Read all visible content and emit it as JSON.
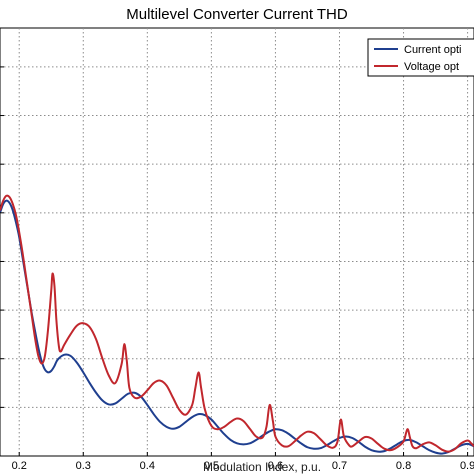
{
  "chart_data": {
    "type": "line",
    "title": "Multilevel Converter Current THD",
    "xlabel": "Modulation Index, p.u.",
    "ylabel": "",
    "xlim": [
      0.17,
      0.91
    ],
    "ylim": [
      0,
      8.8
    ],
    "x_ticks": [
      0.2,
      0.3,
      0.4,
      0.5,
      0.6,
      0.7,
      0.8,
      0.9
    ],
    "x_tick_labels": [
      "0.2",
      "0.3",
      "0.4",
      "0.5",
      "0.6",
      "0.7",
      "0.8",
      "0.9"
    ],
    "grid": true,
    "legend_position": "top-right",
    "series": [
      {
        "name": "Current opti",
        "color": "#1f3f8f",
        "x": [
          0.17,
          0.175,
          0.18,
          0.185,
          0.19,
          0.195,
          0.2,
          0.205,
          0.21,
          0.215,
          0.22,
          0.225,
          0.23,
          0.235,
          0.24,
          0.245,
          0.25,
          0.255,
          0.26,
          0.27,
          0.28,
          0.29,
          0.3,
          0.31,
          0.32,
          0.33,
          0.34,
          0.35,
          0.36,
          0.37,
          0.38,
          0.39,
          0.4,
          0.41,
          0.42,
          0.43,
          0.44,
          0.45,
          0.46,
          0.47,
          0.48,
          0.49,
          0.5,
          0.51,
          0.52,
          0.53,
          0.54,
          0.55,
          0.56,
          0.57,
          0.58,
          0.59,
          0.6,
          0.61,
          0.62,
          0.63,
          0.64,
          0.65,
          0.66,
          0.67,
          0.68,
          0.69,
          0.7,
          0.71,
          0.72,
          0.73,
          0.74,
          0.75,
          0.76,
          0.77,
          0.78,
          0.79,
          0.8,
          0.81,
          0.82,
          0.83,
          0.84,
          0.85,
          0.86,
          0.87,
          0.88,
          0.89,
          0.9,
          0.91
        ],
        "y": [
          5.0,
          5.18,
          5.25,
          5.2,
          5.05,
          4.8,
          4.5,
          4.1,
          3.7,
          3.3,
          2.9,
          2.55,
          2.22,
          1.95,
          1.78,
          1.72,
          1.75,
          1.85,
          1.98,
          2.08,
          2.06,
          1.92,
          1.72,
          1.5,
          1.3,
          1.14,
          1.06,
          1.08,
          1.18,
          1.28,
          1.3,
          1.22,
          1.05,
          0.86,
          0.7,
          0.6,
          0.56,
          0.6,
          0.7,
          0.8,
          0.86,
          0.84,
          0.75,
          0.6,
          0.45,
          0.33,
          0.26,
          0.24,
          0.26,
          0.33,
          0.42,
          0.5,
          0.55,
          0.53,
          0.46,
          0.36,
          0.26,
          0.18,
          0.15,
          0.16,
          0.22,
          0.3,
          0.37,
          0.4,
          0.37,
          0.29,
          0.19,
          0.12,
          0.09,
          0.1,
          0.16,
          0.24,
          0.31,
          0.33,
          0.28,
          0.2,
          0.12,
          0.07,
          0.05,
          0.08,
          0.15,
          0.22,
          0.25,
          0.2
        ]
      },
      {
        "name": "Voltage opt",
        "color": "#c1272d",
        "x": [
          0.17,
          0.175,
          0.18,
          0.185,
          0.19,
          0.195,
          0.2,
          0.205,
          0.21,
          0.215,
          0.22,
          0.225,
          0.23,
          0.235,
          0.24,
          0.245,
          0.25,
          0.252,
          0.255,
          0.258,
          0.262,
          0.265,
          0.27,
          0.28,
          0.29,
          0.3,
          0.31,
          0.32,
          0.33,
          0.34,
          0.35,
          0.36,
          0.364,
          0.368,
          0.372,
          0.38,
          0.39,
          0.4,
          0.41,
          0.42,
          0.43,
          0.44,
          0.45,
          0.46,
          0.47,
          0.475,
          0.48,
          0.484,
          0.49,
          0.5,
          0.51,
          0.52,
          0.53,
          0.54,
          0.55,
          0.56,
          0.57,
          0.58,
          0.586,
          0.591,
          0.596,
          0.6,
          0.61,
          0.62,
          0.63,
          0.64,
          0.65,
          0.66,
          0.67,
          0.68,
          0.69,
          0.697,
          0.702,
          0.707,
          0.715,
          0.72,
          0.73,
          0.74,
          0.75,
          0.76,
          0.77,
          0.78,
          0.79,
          0.8,
          0.806,
          0.81,
          0.814,
          0.82,
          0.83,
          0.84,
          0.85,
          0.86,
          0.87,
          0.88,
          0.89,
          0.9,
          0.905,
          0.91
        ],
        "y": [
          5.05,
          5.25,
          5.35,
          5.32,
          5.18,
          4.95,
          4.6,
          4.2,
          3.75,
          3.3,
          2.85,
          2.4,
          2.05,
          1.9,
          2.05,
          2.6,
          3.4,
          3.75,
          3.5,
          2.8,
          2.25,
          2.15,
          2.28,
          2.5,
          2.68,
          2.73,
          2.65,
          2.4,
          2.0,
          1.65,
          1.5,
          1.9,
          2.3,
          1.95,
          1.4,
          1.2,
          1.22,
          1.35,
          1.5,
          1.55,
          1.45,
          1.2,
          0.95,
          0.85,
          1.05,
          1.4,
          1.72,
          1.4,
          0.95,
          0.62,
          0.55,
          0.6,
          0.7,
          0.77,
          0.72,
          0.56,
          0.4,
          0.38,
          0.6,
          1.05,
          0.72,
          0.4,
          0.22,
          0.2,
          0.3,
          0.42,
          0.5,
          0.47,
          0.35,
          0.22,
          0.17,
          0.3,
          0.75,
          0.4,
          0.22,
          0.2,
          0.3,
          0.39,
          0.36,
          0.25,
          0.15,
          0.12,
          0.18,
          0.3,
          0.55,
          0.38,
          0.2,
          0.16,
          0.24,
          0.28,
          0.22,
          0.13,
          0.09,
          0.14,
          0.26,
          0.32,
          0.27,
          0.2
        ]
      }
    ]
  }
}
